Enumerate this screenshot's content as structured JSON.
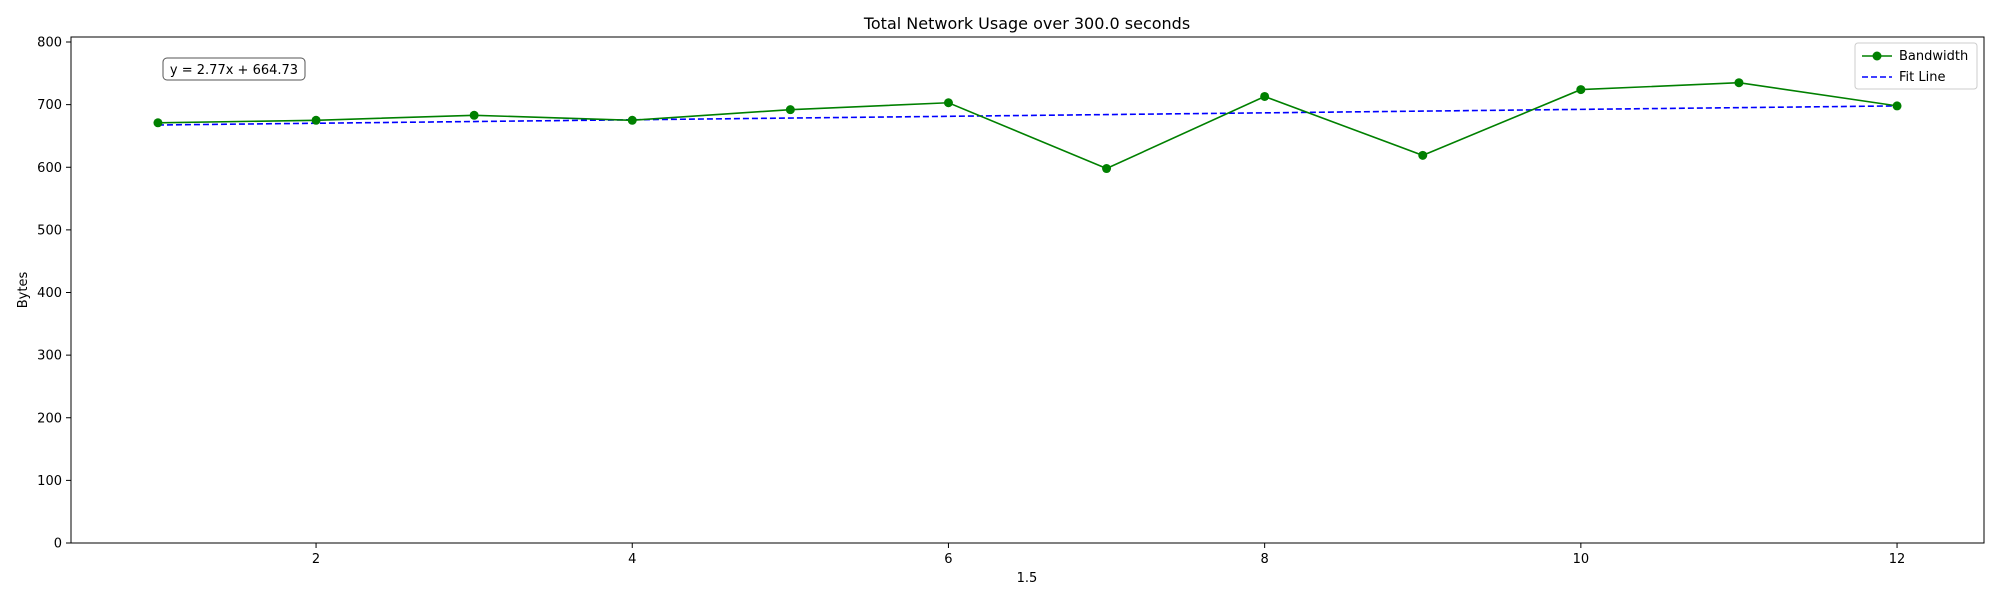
{
  "chart_data": {
    "type": "line",
    "title": "Total Network Usage over 300.0 seconds",
    "xlabel": "1.5",
    "ylabel": "Bytes",
    "xlim": [
      0.45,
      12.55
    ],
    "ylim": [
      0,
      808
    ],
    "x_ticks": [
      2,
      4,
      6,
      8,
      10,
      12
    ],
    "y_ticks": [
      0,
      100,
      200,
      300,
      400,
      500,
      600,
      700,
      800
    ],
    "x": [
      1,
      2,
      3,
      4,
      5,
      6,
      7,
      8,
      9,
      10,
      11,
      12
    ],
    "series": [
      {
        "name": "Bandwidth",
        "color": "#008000",
        "style": "solid",
        "marker": "circle",
        "values": [
          671,
          675,
          683,
          675,
          692,
          703,
          598,
          713,
          619,
          724,
          735,
          698
        ]
      },
      {
        "name": "Fit Line",
        "color": "#0000ff",
        "style": "dashed",
        "marker": "none",
        "values": [
          667.5,
          670.27,
          673.04,
          675.81,
          678.58,
          681.35,
          684.12,
          686.89,
          689.66,
          692.43,
          695.2,
          697.97
        ]
      }
    ],
    "annotation": "y = 2.77x + 664.73",
    "legend_position": "upper right",
    "grid": false
  }
}
